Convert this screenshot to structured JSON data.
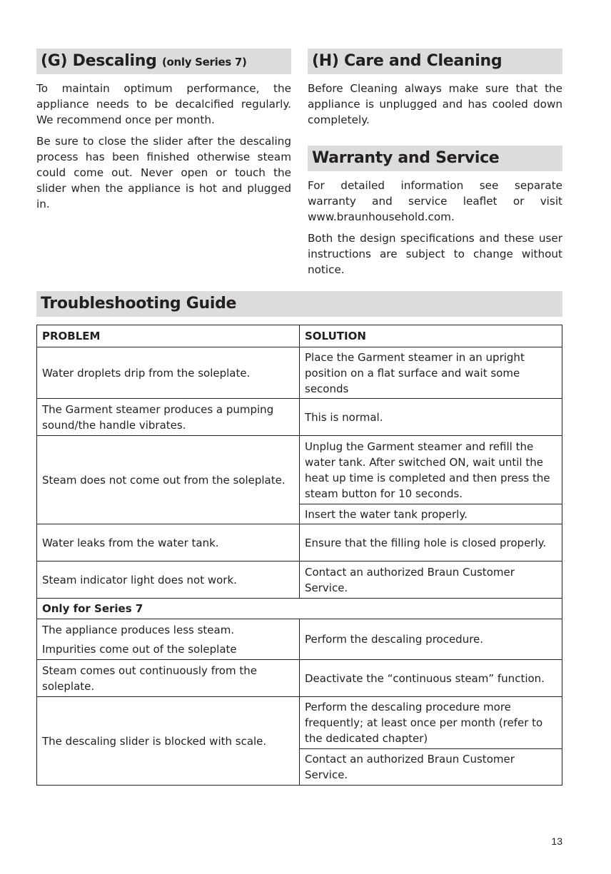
{
  "descaling": {
    "title": "(G) Descaling",
    "title_note": "(only Series 7)",
    "paragraphs": [
      "To maintain optimum performance, the appliance needs to be decalcified regularly. We recommend once per month.",
      "Be sure to close the slider after the descaling process has been finished otherwise steam could come out. Never open or touch the slider when the appliance is hot and plugged in."
    ]
  },
  "care": {
    "title": "(H) Care and Cleaning",
    "paragraphs": [
      "Before Cleaning always make sure that the appliance is unplugged and has cooled down completely."
    ]
  },
  "warranty": {
    "title": "Warranty and Service",
    "paragraphs": [
      "For detailed information see separate warranty and service leaflet or visit www.braunhousehold.com.",
      "Both the design specifications and these user instructions are subject to change without notice."
    ]
  },
  "troubleshooting": {
    "title": "Troubleshooting Guide",
    "headers": [
      "PROBLEM",
      "SOLUTION"
    ],
    "rows": [
      {
        "problem": "Water droplets drip from the soleplate.",
        "solutions": [
          "Place the Garment steamer in an upright position on a flat surface and wait some seconds"
        ]
      },
      {
        "problem": "The Garment steamer produces a pumping sound/the handle vibrates.",
        "solutions": [
          "This is normal."
        ]
      },
      {
        "problem": "Steam does not come out from the soleplate.",
        "solutions": [
          "Unplug the Garment steamer and refill the water tank. After switched ON, wait until the heat up time is completed and then press the steam button for 10 seconds.",
          "Insert the water tank properly."
        ]
      },
      {
        "problem": "Water leaks from the water tank.",
        "solutions": [
          "Ensure that the filling hole is closed properly."
        ]
      },
      {
        "problem": "Steam indicator light does not work.",
        "solutions": [
          "Contact an authorized Braun Customer Service."
        ]
      }
    ],
    "series7_label": "Only for Series 7",
    "series7_rows": [
      {
        "problem_lines": [
          "The appliance produces less steam.",
          "Impurities come out of the soleplate"
        ],
        "solutions": [
          "Perform the descaling procedure."
        ]
      },
      {
        "problem": "Steam comes out continuously from the soleplate.",
        "solutions": [
          "Deactivate the “continuous steam” function."
        ]
      },
      {
        "problem": "The descaling slider is blocked with scale.",
        "solutions": [
          "Perform the descaling procedure more frequently; at least once per month (refer to the dedicated chapter)",
          "Contact an authorized Braun Customer Service."
        ]
      }
    ]
  },
  "page_number": "13"
}
